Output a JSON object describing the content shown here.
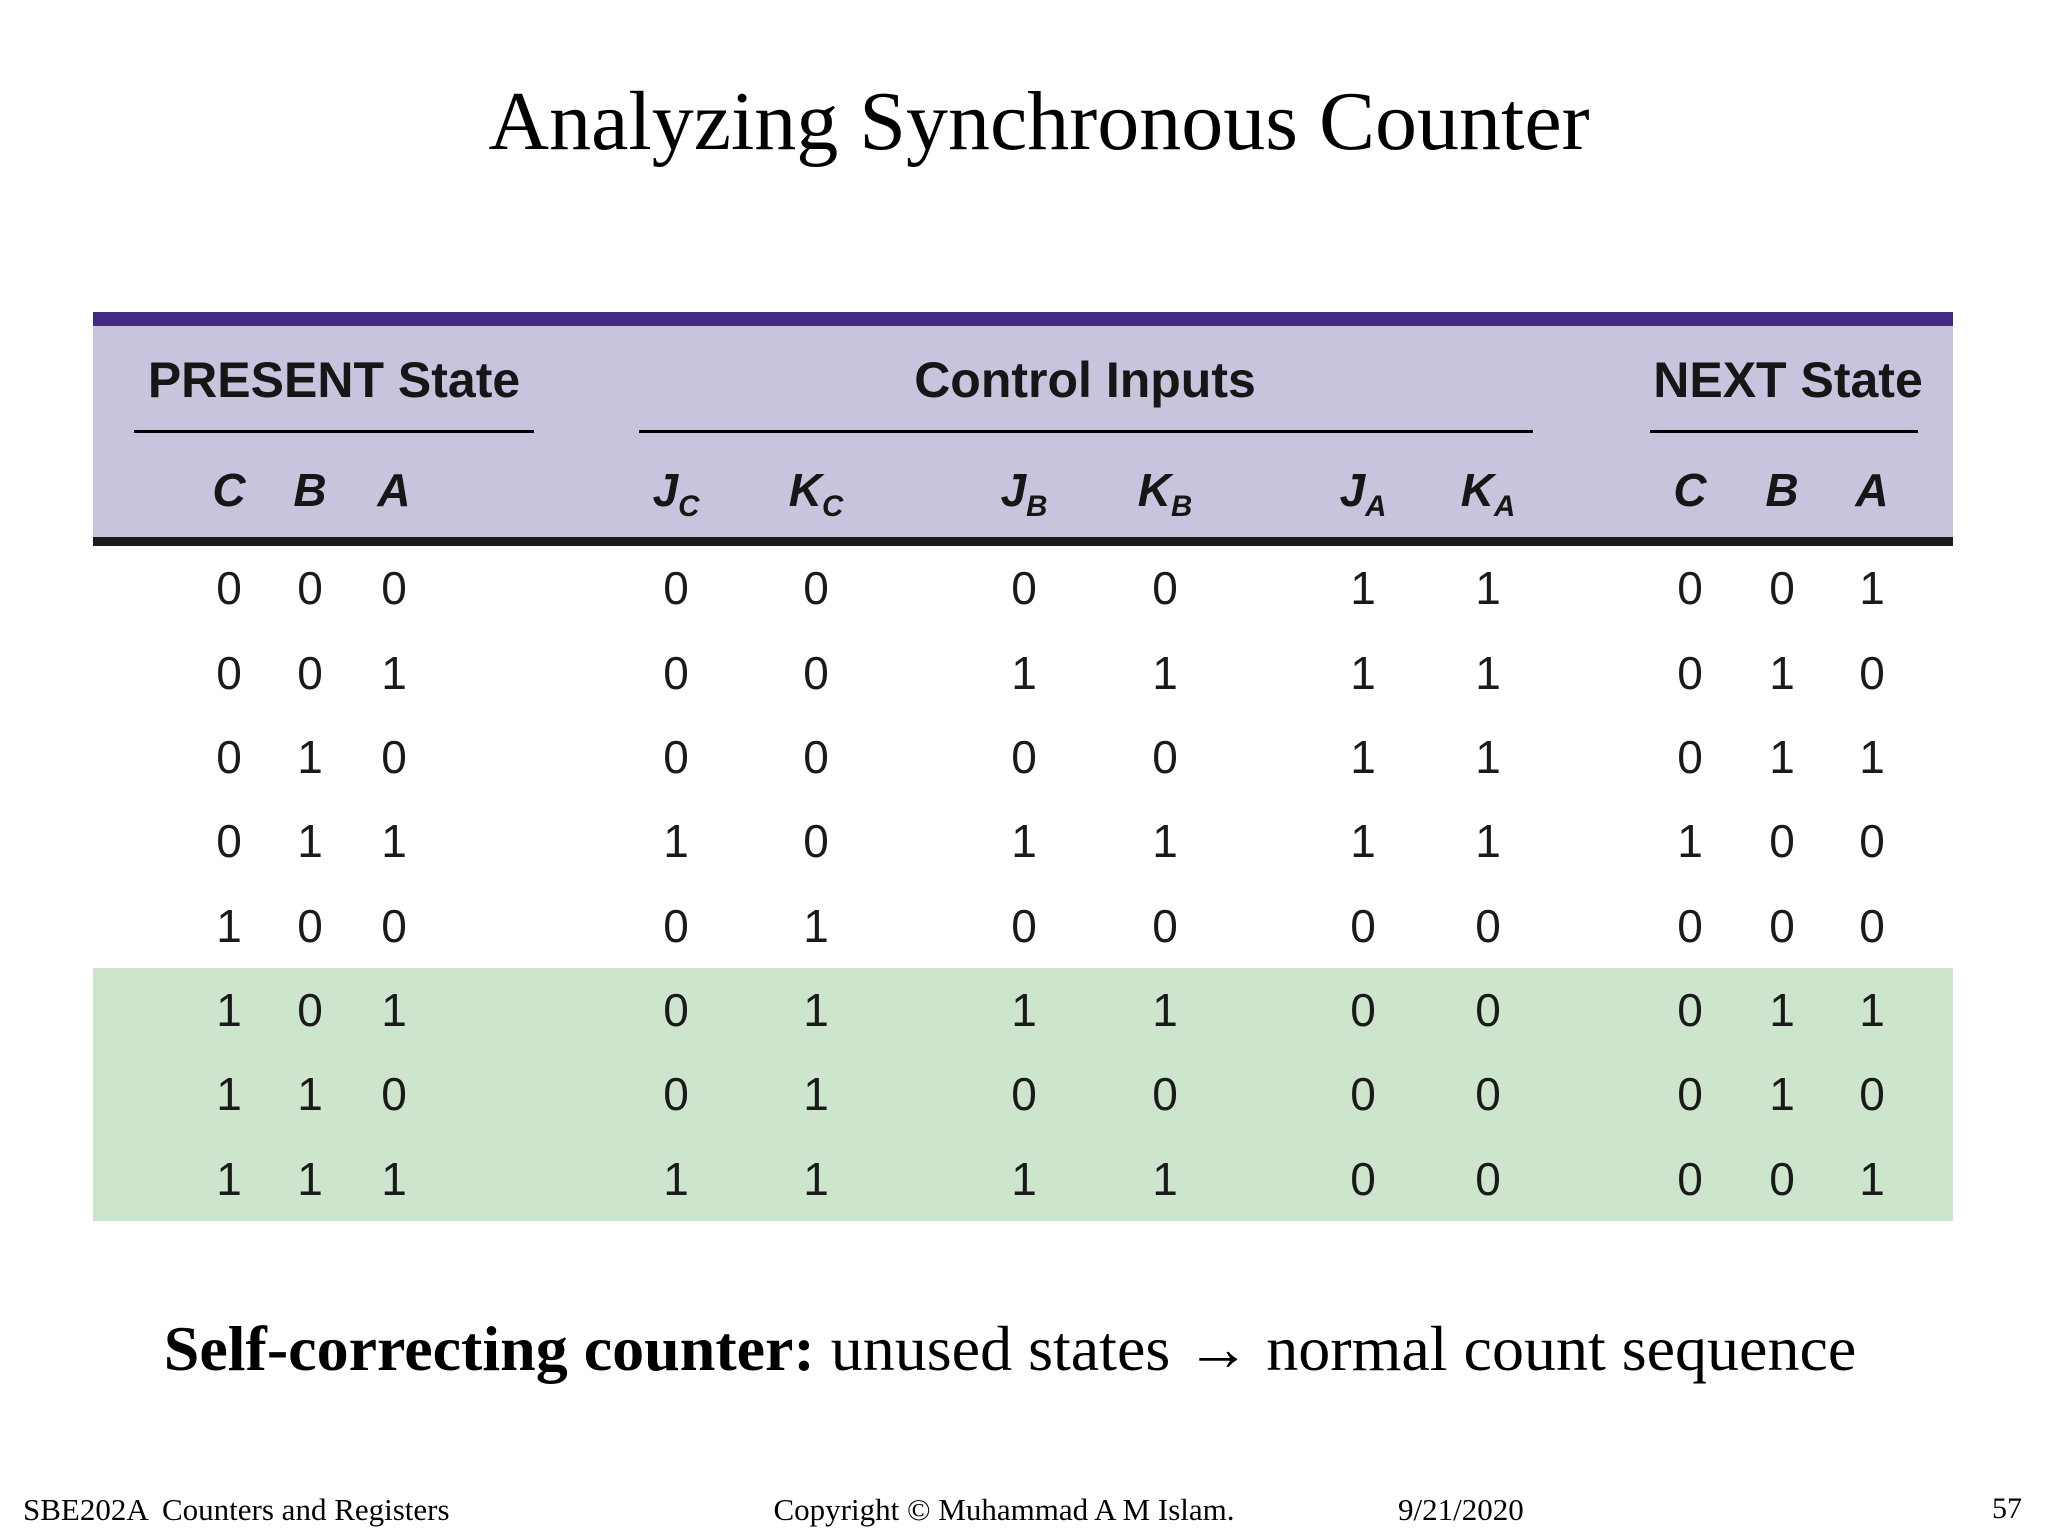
{
  "slide_title": "Analyzing Synchronous Counter",
  "table": {
    "groups": [
      {
        "label": "PRESENT State"
      },
      {
        "label": "Control Inputs"
      },
      {
        "label": "NEXT State"
      }
    ],
    "columns": [
      {
        "main": "C"
      },
      {
        "main": "B"
      },
      {
        "main": "A"
      },
      {
        "main": "J",
        "sub": "C"
      },
      {
        "main": "K",
        "sub": "C"
      },
      {
        "main": "J",
        "sub": "B"
      },
      {
        "main": "K",
        "sub": "B"
      },
      {
        "main": "J",
        "sub": "A"
      },
      {
        "main": "K",
        "sub": "A"
      },
      {
        "main": "C"
      },
      {
        "main": "B"
      },
      {
        "main": "A"
      }
    ],
    "rows": [
      {
        "cells": [
          "0",
          "0",
          "0",
          "0",
          "0",
          "0",
          "0",
          "1",
          "1",
          "0",
          "0",
          "1"
        ],
        "highlight": false
      },
      {
        "cells": [
          "0",
          "0",
          "1",
          "0",
          "0",
          "1",
          "1",
          "1",
          "1",
          "0",
          "1",
          "0"
        ],
        "highlight": false
      },
      {
        "cells": [
          "0",
          "1",
          "0",
          "0",
          "0",
          "0",
          "0",
          "1",
          "1",
          "0",
          "1",
          "1"
        ],
        "highlight": false
      },
      {
        "cells": [
          "0",
          "1",
          "1",
          "1",
          "0",
          "1",
          "1",
          "1",
          "1",
          "1",
          "0",
          "0"
        ],
        "highlight": false
      },
      {
        "cells": [
          "1",
          "0",
          "0",
          "0",
          "1",
          "0",
          "0",
          "0",
          "0",
          "0",
          "0",
          "0"
        ],
        "highlight": false
      },
      {
        "cells": [
          "1",
          "0",
          "1",
          "0",
          "1",
          "1",
          "1",
          "0",
          "0",
          "0",
          "1",
          "1"
        ],
        "highlight": true
      },
      {
        "cells": [
          "1",
          "1",
          "0",
          "0",
          "1",
          "0",
          "0",
          "0",
          "0",
          "0",
          "1",
          "0"
        ],
        "highlight": true
      },
      {
        "cells": [
          "1",
          "1",
          "1",
          "1",
          "1",
          "1",
          "1",
          "0",
          "0",
          "0",
          "0",
          "1"
        ],
        "highlight": true
      }
    ]
  },
  "note": {
    "bold": "Self-correcting counter:",
    "rest": " unused states → normal count sequence"
  },
  "footer": {
    "course": "SBE202A",
    "topic": "Counters and Registers",
    "copyright": "Copyright © Muhammad A M Islam.",
    "date": "9/21/2020",
    "page": "57"
  },
  "colors": {
    "header_bar_purple": "#402a86",
    "header_bg_lavender": "#c9c4dd",
    "highlight_green": "#cde4cd",
    "separator_black": "#1c1c1c"
  }
}
